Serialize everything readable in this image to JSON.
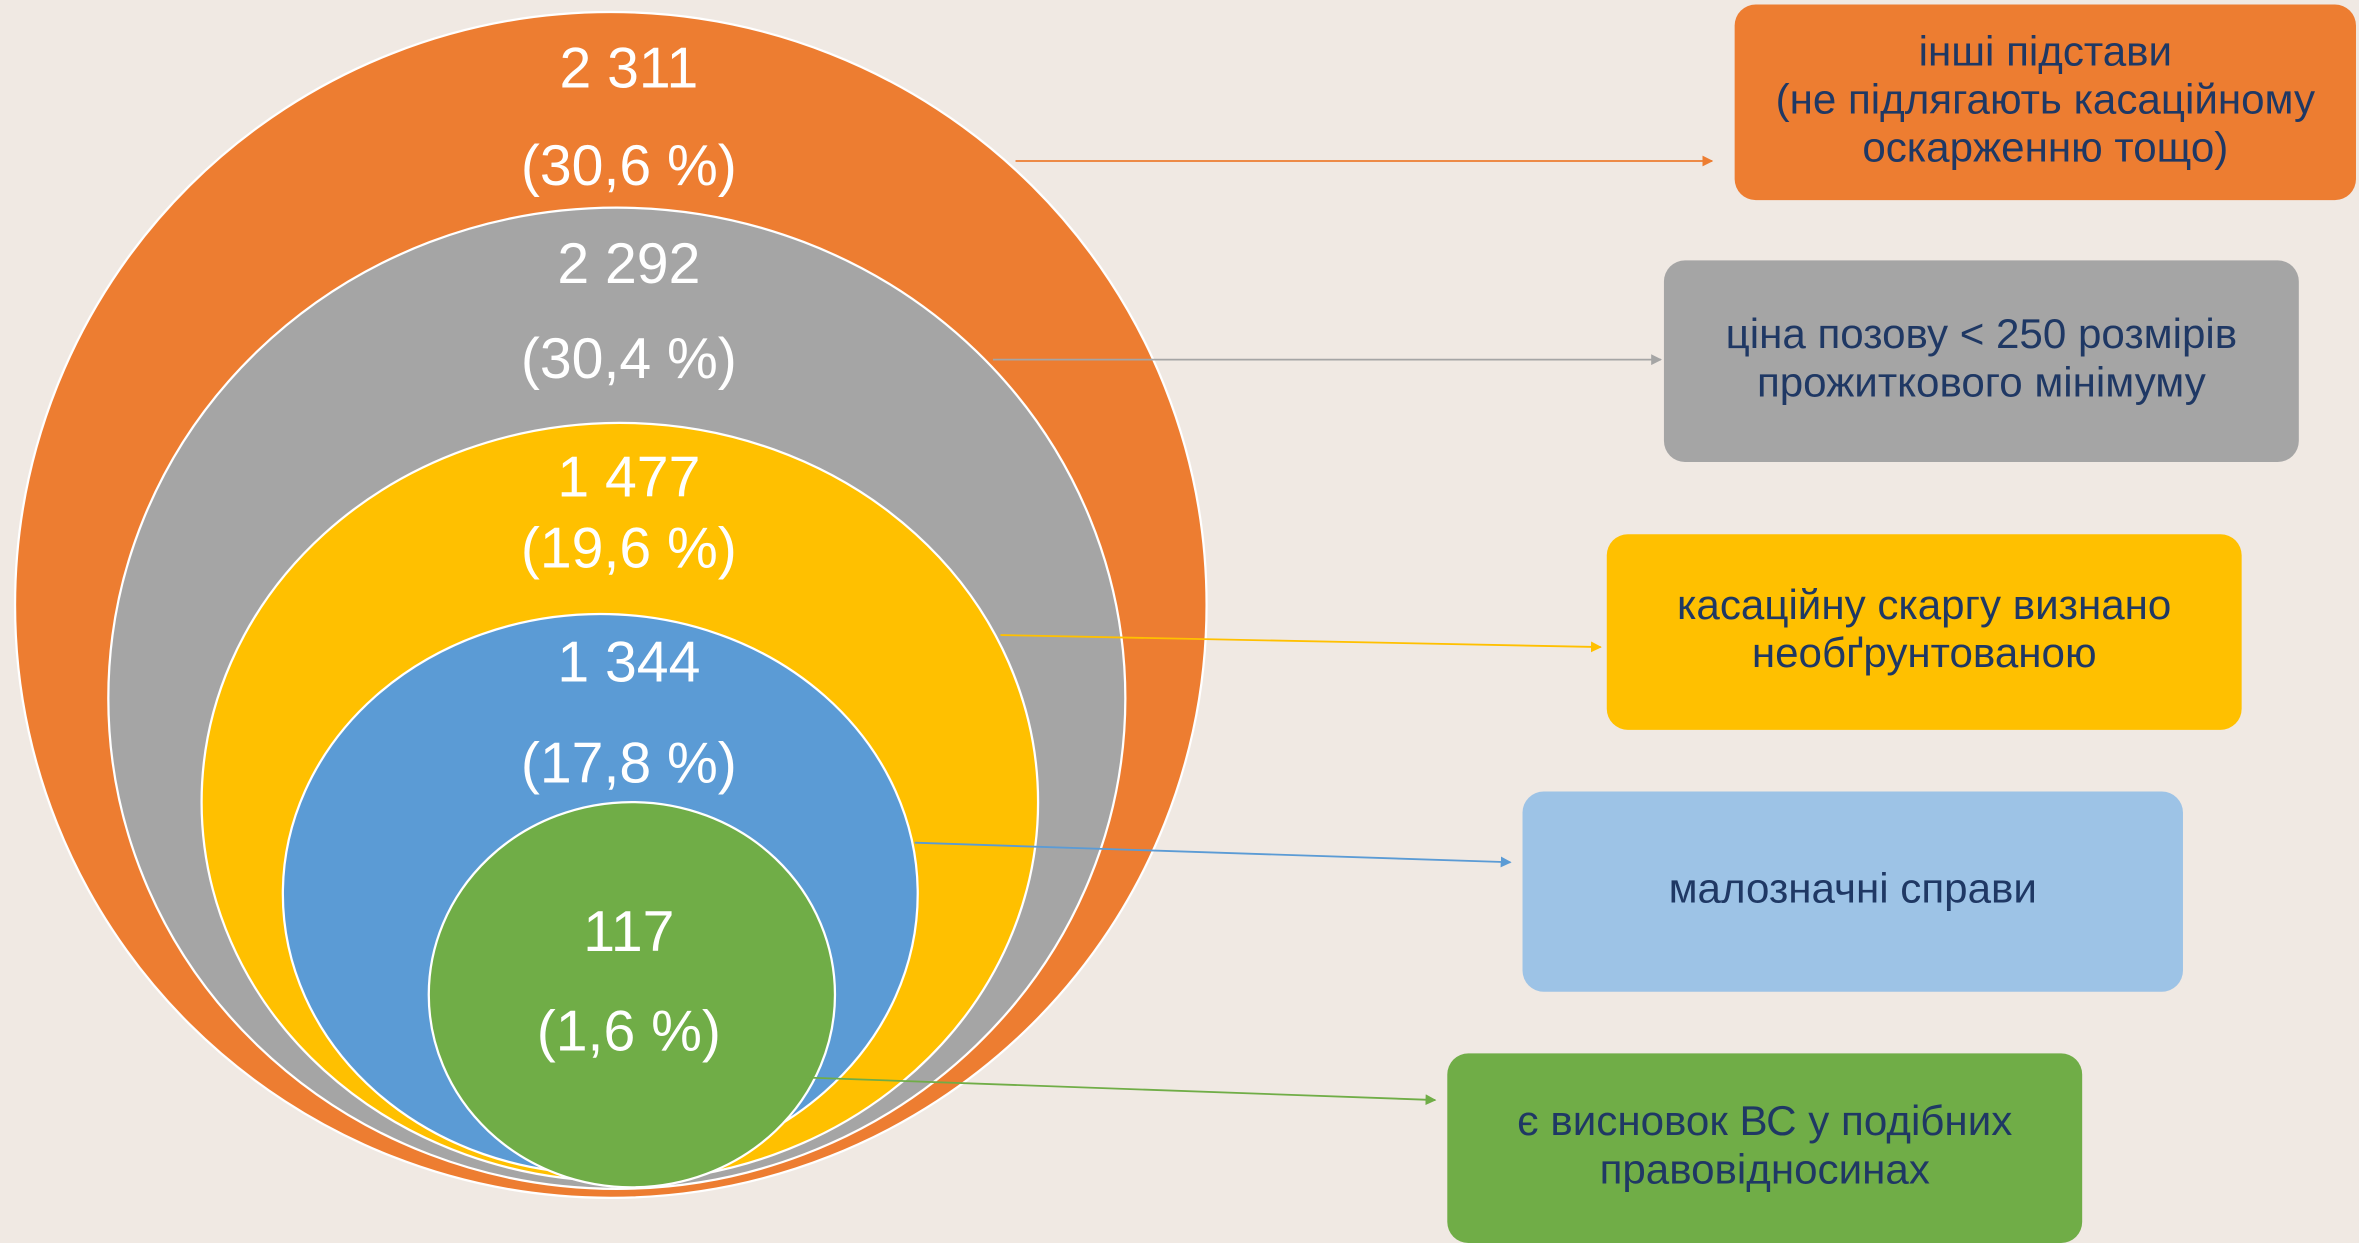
{
  "nodes": [
    {
      "count": "2 311",
      "share": "(30,6 %)",
      "label": [
        "інші підстави",
        "(не підлягають касаційному",
        "оскарженню тощо)"
      ]
    },
    {
      "count": "2 292",
      "share": "(30,4 %)",
      "label": [
        "ціна позову < 250 розмірів",
        "прожиткового мінімуму"
      ]
    },
    {
      "count": "1 477",
      "share": "(19,6 %)",
      "label": [
        "касаційну скаргу визнано",
        "необґрунтованою"
      ]
    },
    {
      "count": "1 344",
      "share": "(17,8 %)",
      "label": [
        "малозначні справи"
      ]
    },
    {
      "count": "117",
      "share": "(1,6 %)",
      "label": [
        "є висновок ВС у подібних",
        "правовідносинах"
      ]
    }
  ]
}
